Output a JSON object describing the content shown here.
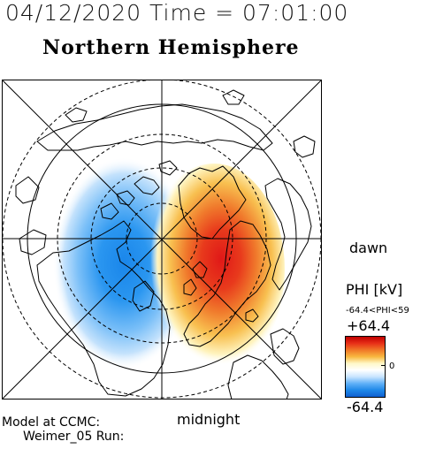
{
  "header": {
    "date_time": "04/12/2020 Time = 07:01:00",
    "hemisphere": "Northern Hemisphere"
  },
  "map": {
    "orientation_right": "dawn",
    "orientation_bottom": "midnight",
    "projection": "north polar stereographic",
    "positive_color": "#e0201a",
    "negative_color": "#1a8ee8"
  },
  "footer": {
    "credit_line1": "Model at CCMC:",
    "credit_line2": "Weimer_05 Run:"
  },
  "colorbar": {
    "title": "PHI [kV]",
    "range_text": "-64.4<PHI<59",
    "max_label": "+64.4",
    "zero_label": "0",
    "min_label": "-64.4",
    "colors": [
      "#c00000",
      "#e83018",
      "#f07828",
      "#f8b840",
      "#fff8c8",
      "#ffffff",
      "#c8e4ff",
      "#60b0f8",
      "#1e88e8",
      "#1060d0"
    ]
  }
}
